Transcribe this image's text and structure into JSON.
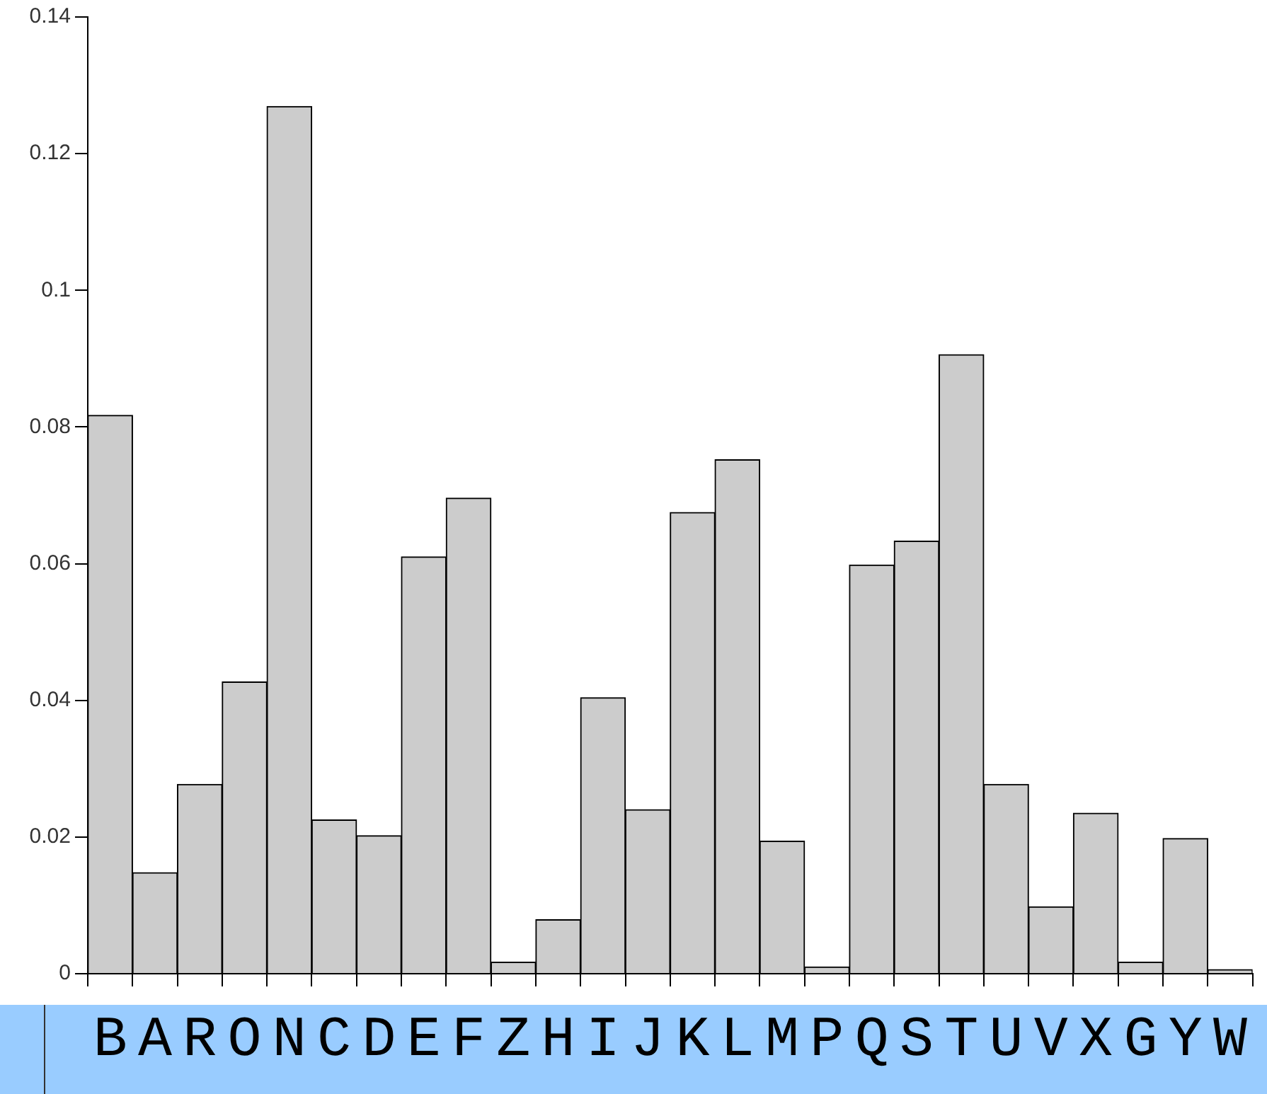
{
  "chart_data": {
    "type": "bar",
    "categories": [
      "B",
      "A",
      "R",
      "O",
      "N",
      "C",
      "D",
      "E",
      "F",
      "Z",
      "H",
      "I",
      "J",
      "K",
      "L",
      "M",
      "P",
      "Q",
      "S",
      "T",
      "U",
      "V",
      "X",
      "G",
      "Y",
      "W"
    ],
    "values": [
      0.0817,
      0.0148,
      0.0277,
      0.0427,
      0.1269,
      0.0225,
      0.0202,
      0.061,
      0.0696,
      0.0017,
      0.0079,
      0.0404,
      0.024,
      0.0675,
      0.0752,
      0.0194,
      0.001,
      0.0598,
      0.0633,
      0.0906,
      0.0277,
      0.0098,
      0.0235,
      0.0017,
      0.0198,
      0.0006
    ],
    "color": "#cccccc",
    "ylim": [
      0,
      0.14
    ],
    "yticks": [
      0,
      0.02,
      0.04,
      0.06,
      0.08,
      0.1,
      0.12,
      0.14
    ],
    "grid": false,
    "legend": false
  }
}
